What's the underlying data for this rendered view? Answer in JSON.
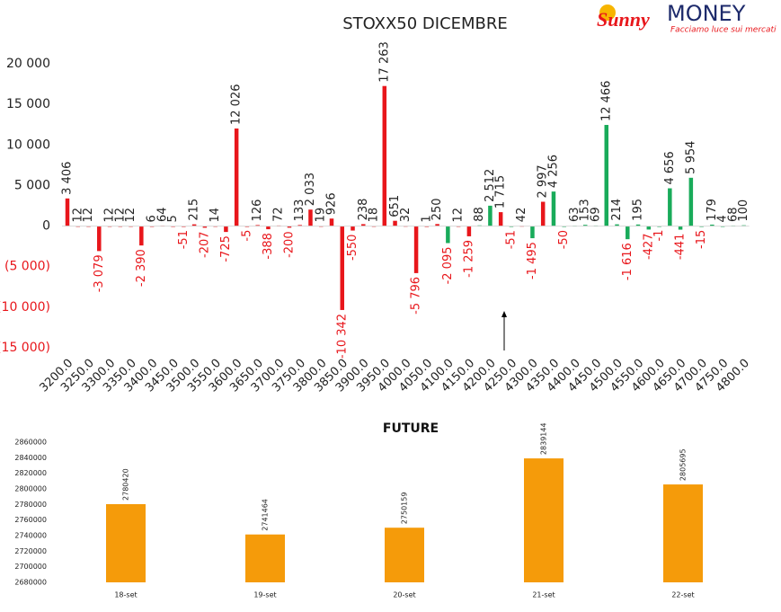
{
  "logo": {
    "name_1": "Sunny",
    "name_2": "MONEY",
    "tagline": "Facciamo luce sui mercati"
  },
  "chart_data": [
    {
      "type": "bar",
      "title": "STOXX50 DICEMBRE",
      "categories": [
        "3200.0",
        null,
        "3250.0",
        null,
        "3300.0",
        null,
        "3350.0",
        null,
        "3400.0",
        null,
        "3450.0",
        null,
        "3500.0",
        null,
        "3550.0",
        null,
        "3600.0",
        null,
        "3650.0",
        null,
        "3700.0",
        null,
        "3750.0",
        null,
        "3800.0",
        null,
        "3850.0",
        null,
        "3900.0",
        null,
        "3950.0",
        null,
        "4000.0",
        null,
        "4050.0",
        null,
        "4100.0",
        null,
        "4150.0",
        null,
        "4200.0",
        null,
        "4250.0",
        null,
        "4300.0",
        null,
        "4350.0",
        null,
        "4400.0",
        null,
        "4450.0",
        null,
        "4500.0",
        null,
        "4550.0",
        null,
        "4600.0",
        null,
        "4650.0",
        null,
        "4700.0",
        null,
        "4750.0",
        null,
        "4800.0"
      ],
      "values": [
        3406,
        12,
        12,
        -3079,
        12,
        12,
        12,
        -2390,
        6,
        64,
        5,
        -51,
        215,
        -207,
        14,
        -725,
        12026,
        -5,
        126,
        -388,
        72,
        -200,
        133,
        2033,
        19,
        926,
        -10342,
        -550,
        238,
        18,
        17263,
        651,
        32,
        -5796,
        1,
        250,
        -2095,
        12,
        -1259,
        88,
        2512,
        1715,
        -51,
        42,
        -1495,
        2997,
        4256,
        -50,
        63,
        153,
        69,
        12466,
        214,
        -1616,
        195,
        -427,
        -1,
        4656,
        -441,
        5954,
        -15,
        179,
        4,
        68,
        100
      ],
      "value_labels": [
        "3 406",
        "12",
        "12",
        "-3 079",
        "12",
        "12",
        "12",
        "-2 390",
        "6",
        "64",
        "5",
        "-51",
        "215",
        "-207",
        "14",
        "-725",
        "12 026",
        "-5",
        "126",
        "-388",
        "72",
        "-200",
        "133",
        "2 033",
        "19",
        "926",
        "-10 342",
        "-550",
        "238",
        "18",
        "17 263",
        "651",
        "32",
        "-5 796",
        "1",
        "250",
        "-2 095",
        "12",
        "-1 259",
        "88",
        "2 512",
        "1 715",
        "-51",
        "42",
        "-1 495",
        "2 997",
        "4 256",
        "-50",
        "63",
        "153",
        "69",
        "12 466",
        "214",
        "-1 616",
        "195",
        "-427",
        "-1",
        "4 656",
        "-441",
        "5 954",
        "-15",
        "179",
        "4",
        "68",
        "100"
      ],
      "colors": [
        "#e8161b",
        "#e8161b",
        "#e8161b",
        "#e8161b",
        "#e8161b",
        "#e8161b",
        "#e8161b",
        "#e8161b",
        "#e8161b",
        "#e8161b",
        "#e8161b",
        "#e8161b",
        "#e8161b",
        "#e8161b",
        "#e8161b",
        "#e8161b",
        "#e8161b",
        "#e8161b",
        "#e8161b",
        "#e8161b",
        "#e8161b",
        "#e8161b",
        "#e8161b",
        "#e8161b",
        "#e8161b",
        "#e8161b",
        "#e8161b",
        "#e8161b",
        "#e8161b",
        "#e8161b",
        "#e8161b",
        "#e8161b",
        "#e8161b",
        "#e8161b",
        "#e8161b",
        "#e8161b",
        "#19ab5a",
        "#e8161b",
        "#e8161b",
        "#19ab5a",
        "#19ab5a",
        "#e8161b",
        "#19ab5a",
        "#e8161b",
        "#19ab5a",
        "#e8161b",
        "#19ab5a",
        "#19ab5a",
        "#19ab5a",
        "#19ab5a",
        "#19ab5a",
        "#19ab5a",
        "#19ab5a",
        "#19ab5a",
        "#19ab5a",
        "#19ab5a",
        "#19ab5a",
        "#19ab5a",
        "#19ab5a",
        "#19ab5a",
        "#19ab5a",
        "#19ab5a",
        "#19ab5a",
        "#19ab5a",
        "#19ab5a"
      ],
      "ylim": [
        -15000,
        20000
      ],
      "yticks": [
        {
          "value": -15000,
          "label": "(15 000)"
        },
        {
          "value": -10000,
          "label": "(10 000)"
        },
        {
          "value": -5000,
          "label": "(5 000)"
        },
        0,
        {
          "value": 5000,
          "label": "5 000"
        },
        {
          "value": 10000,
          "label": "10 000"
        },
        {
          "value": 15000,
          "label": "15 000"
        },
        {
          "value": 20000,
          "label": "20 000"
        }
      ]
    },
    {
      "type": "bar",
      "title": "FUTURE",
      "categories": [
        "18-set",
        "19-set",
        "20-set",
        "21-set",
        "22-set"
      ],
      "values": [
        2780420,
        2741464,
        2750159,
        2839144,
        2805695
      ],
      "color": "#f59b0a",
      "ylim": [
        2680000,
        2860000
      ],
      "yticks": [
        2680000,
        2700000,
        2720000,
        2740000,
        2760000,
        2780000,
        2800000,
        2820000,
        2840000,
        2860000
      ]
    }
  ]
}
